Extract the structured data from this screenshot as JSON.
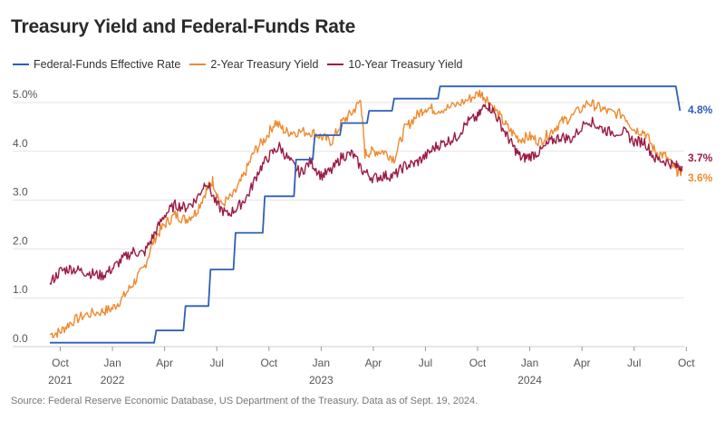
{
  "chart_data": {
    "type": "line",
    "title": "Treasury Yield and Federal-Funds Rate",
    "source": "Source: Federal Reserve Economic Database, US Department of the Treasury. Data as of Sept. 19, 2024.",
    "ylim": [
      0,
      5.3
    ],
    "x_range": [
      2021.7,
      2024.74
    ],
    "y_ticks": [
      {
        "value": 0,
        "label": "0.0"
      },
      {
        "value": 1,
        "label": "1.0"
      },
      {
        "value": 2,
        "label": "2.0"
      },
      {
        "value": 3,
        "label": "3.0"
      },
      {
        "value": 4,
        "label": "4.0"
      },
      {
        "value": 5,
        "label": "5.0%"
      }
    ],
    "x_ticks": [
      {
        "value": 2021.75,
        "label": "Oct",
        "sub": "2021"
      },
      {
        "value": 2022.0,
        "label": "Jan",
        "sub": "2022"
      },
      {
        "value": 2022.25,
        "label": "Apr",
        "sub": ""
      },
      {
        "value": 2022.5,
        "label": "Jul",
        "sub": ""
      },
      {
        "value": 2022.75,
        "label": "Oct",
        "sub": ""
      },
      {
        "value": 2023.0,
        "label": "Jan",
        "sub": "2023"
      },
      {
        "value": 2023.25,
        "label": "Apr",
        "sub": ""
      },
      {
        "value": 2023.5,
        "label": "Jul",
        "sub": ""
      },
      {
        "value": 2023.75,
        "label": "Oct",
        "sub": ""
      },
      {
        "value": 2024.0,
        "label": "Jan",
        "sub": "2024"
      },
      {
        "value": 2024.25,
        "label": "Apr",
        "sub": ""
      },
      {
        "value": 2024.5,
        "label": "Jul",
        "sub": ""
      },
      {
        "value": 2024.75,
        "label": "Oct",
        "sub": ""
      }
    ],
    "series": [
      {
        "name": "Federal-Funds Effective Rate",
        "color": "#2e5fb8",
        "step": true,
        "end_label": "4.8%",
        "points": [
          [
            2021.7,
            0.08
          ],
          [
            2022.2,
            0.08
          ],
          [
            2022.21,
            0.33
          ],
          [
            2022.34,
            0.33
          ],
          [
            2022.35,
            0.83
          ],
          [
            2022.46,
            0.83
          ],
          [
            2022.47,
            1.58
          ],
          [
            2022.58,
            1.58
          ],
          [
            2022.59,
            2.33
          ],
          [
            2022.72,
            2.33
          ],
          [
            2022.73,
            3.08
          ],
          [
            2022.87,
            3.08
          ],
          [
            2022.88,
            3.83
          ],
          [
            2022.96,
            3.83
          ],
          [
            2022.97,
            4.33
          ],
          [
            2023.09,
            4.33
          ],
          [
            2023.1,
            4.58
          ],
          [
            2023.22,
            4.58
          ],
          [
            2023.23,
            4.83
          ],
          [
            2023.34,
            4.83
          ],
          [
            2023.35,
            5.08
          ],
          [
            2023.56,
            5.08
          ],
          [
            2023.57,
            5.33
          ],
          [
            2024.7,
            5.33
          ],
          [
            2024.72,
            4.83
          ]
        ]
      },
      {
        "name": "2-Year Treasury Yield",
        "color": "#ef8a2e",
        "step": false,
        "end_label": "3.6%",
        "points": [
          [
            2021.7,
            0.25
          ],
          [
            2021.75,
            0.3
          ],
          [
            2021.8,
            0.5
          ],
          [
            2021.87,
            0.65
          ],
          [
            2021.95,
            0.72
          ],
          [
            2022.0,
            0.78
          ],
          [
            2022.05,
            1.0
          ],
          [
            2022.1,
            1.3
          ],
          [
            2022.15,
            1.6
          ],
          [
            2022.2,
            2.2
          ],
          [
            2022.25,
            2.5
          ],
          [
            2022.3,
            2.7
          ],
          [
            2022.35,
            2.6
          ],
          [
            2022.4,
            2.75
          ],
          [
            2022.45,
            3.2
          ],
          [
            2022.48,
            3.4
          ],
          [
            2022.52,
            2.9
          ],
          [
            2022.58,
            3.1
          ],
          [
            2022.63,
            3.5
          ],
          [
            2022.68,
            4.0
          ],
          [
            2022.73,
            4.25
          ],
          [
            2022.78,
            4.6
          ],
          [
            2022.83,
            4.4
          ],
          [
            2022.88,
            4.4
          ],
          [
            2022.95,
            4.4
          ],
          [
            2023.0,
            4.3
          ],
          [
            2023.05,
            4.2
          ],
          [
            2023.1,
            4.6
          ],
          [
            2023.15,
            4.8
          ],
          [
            2023.19,
            5.05
          ],
          [
            2023.21,
            3.95
          ],
          [
            2023.25,
            4.0
          ],
          [
            2023.3,
            4.0
          ],
          [
            2023.35,
            3.85
          ],
          [
            2023.4,
            4.45
          ],
          [
            2023.45,
            4.7
          ],
          [
            2023.5,
            4.9
          ],
          [
            2023.55,
            4.85
          ],
          [
            2023.62,
            4.9
          ],
          [
            2023.7,
            5.05
          ],
          [
            2023.76,
            5.2
          ],
          [
            2023.8,
            5.05
          ],
          [
            2023.85,
            4.75
          ],
          [
            2023.9,
            4.45
          ],
          [
            2023.95,
            4.25
          ],
          [
            2024.0,
            4.3
          ],
          [
            2024.05,
            4.2
          ],
          [
            2024.1,
            4.4
          ],
          [
            2024.15,
            4.6
          ],
          [
            2024.2,
            4.7
          ],
          [
            2024.28,
            5.0
          ],
          [
            2024.33,
            4.9
          ],
          [
            2024.38,
            4.8
          ],
          [
            2024.45,
            4.75
          ],
          [
            2024.5,
            4.45
          ],
          [
            2024.55,
            4.4
          ],
          [
            2024.6,
            4.0
          ],
          [
            2024.65,
            3.9
          ],
          [
            2024.7,
            3.6
          ],
          [
            2024.73,
            3.6
          ]
        ]
      },
      {
        "name": "10-Year Treasury Yield",
        "color": "#9b1b45",
        "step": false,
        "end_label": "3.7%",
        "points": [
          [
            2021.7,
            1.3
          ],
          [
            2021.75,
            1.55
          ],
          [
            2021.8,
            1.6
          ],
          [
            2021.85,
            1.55
          ],
          [
            2021.9,
            1.5
          ],
          [
            2021.95,
            1.45
          ],
          [
            2022.0,
            1.6
          ],
          [
            2022.05,
            1.8
          ],
          [
            2022.1,
            1.95
          ],
          [
            2022.15,
            1.9
          ],
          [
            2022.2,
            2.3
          ],
          [
            2022.25,
            2.7
          ],
          [
            2022.3,
            2.9
          ],
          [
            2022.35,
            2.85
          ],
          [
            2022.4,
            3.0
          ],
          [
            2022.45,
            3.4
          ],
          [
            2022.5,
            2.9
          ],
          [
            2022.55,
            2.7
          ],
          [
            2022.6,
            2.85
          ],
          [
            2022.65,
            3.1
          ],
          [
            2022.7,
            3.6
          ],
          [
            2022.75,
            3.9
          ],
          [
            2022.8,
            4.1
          ],
          [
            2022.85,
            3.8
          ],
          [
            2022.9,
            3.55
          ],
          [
            2022.95,
            3.8
          ],
          [
            2023.0,
            3.5
          ],
          [
            2023.05,
            3.6
          ],
          [
            2023.1,
            3.9
          ],
          [
            2023.15,
            3.95
          ],
          [
            2023.2,
            3.6
          ],
          [
            2023.25,
            3.45
          ],
          [
            2023.3,
            3.5
          ],
          [
            2023.35,
            3.5
          ],
          [
            2023.4,
            3.7
          ],
          [
            2023.45,
            3.75
          ],
          [
            2023.5,
            3.9
          ],
          [
            2023.55,
            4.1
          ],
          [
            2023.6,
            4.2
          ],
          [
            2023.65,
            4.3
          ],
          [
            2023.7,
            4.6
          ],
          [
            2023.75,
            4.7
          ],
          [
            2023.79,
            4.98
          ],
          [
            2023.83,
            4.8
          ],
          [
            2023.88,
            4.4
          ],
          [
            2023.92,
            4.1
          ],
          [
            2023.96,
            3.85
          ],
          [
            2024.0,
            3.9
          ],
          [
            2024.05,
            4.0
          ],
          [
            2024.1,
            4.2
          ],
          [
            2024.15,
            4.3
          ],
          [
            2024.2,
            4.25
          ],
          [
            2024.28,
            4.65
          ],
          [
            2024.33,
            4.5
          ],
          [
            2024.38,
            4.4
          ],
          [
            2024.45,
            4.4
          ],
          [
            2024.5,
            4.2
          ],
          [
            2024.55,
            4.2
          ],
          [
            2024.6,
            3.85
          ],
          [
            2024.65,
            3.8
          ],
          [
            2024.7,
            3.7
          ],
          [
            2024.73,
            3.7
          ]
        ]
      }
    ]
  }
}
